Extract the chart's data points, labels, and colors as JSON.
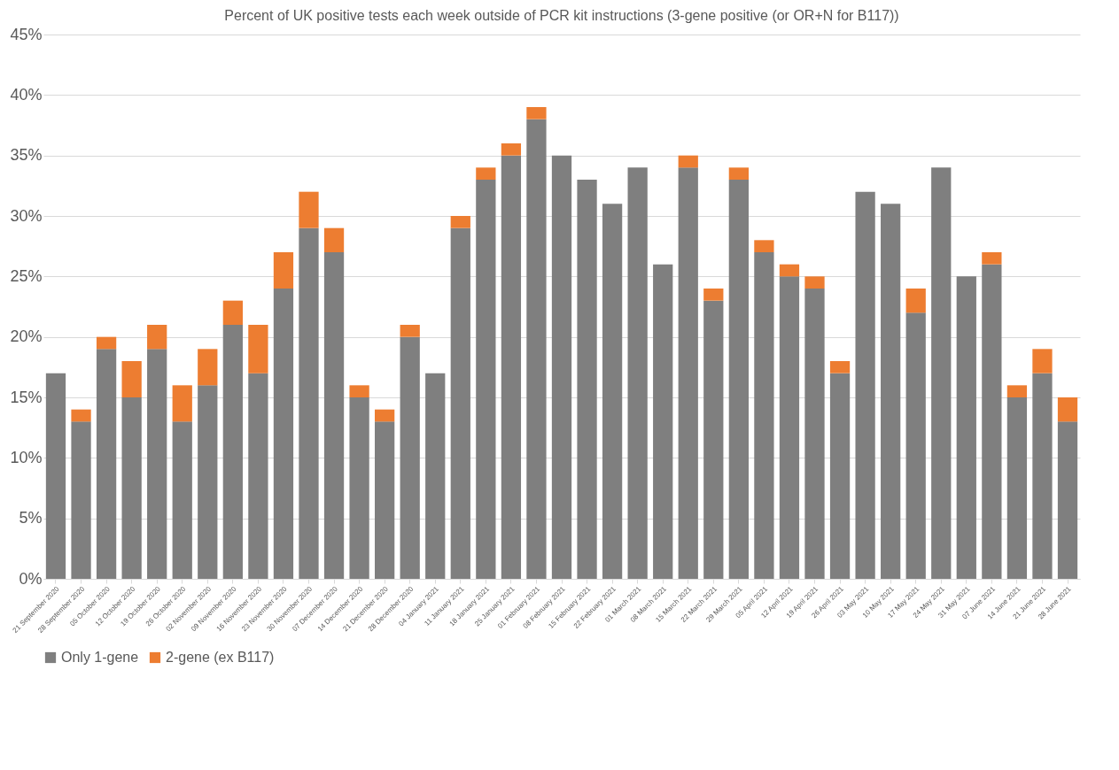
{
  "chart_data": {
    "type": "bar",
    "title": "Percent of UK positive tests each week outside of PCR kit instructions (3-gene positive (or OR+N for B117))",
    "stacked": true,
    "legend": "bottom",
    "grid": "y",
    "categories": [
      "21 September 2020",
      "28 September 2020",
      "05 October 2020",
      "12 October 2020",
      "19 October 2020",
      "26 October 2020",
      "02 November 2020",
      "09 November 2020",
      "16 November 2020",
      "23 November 2020",
      "30 November 2020",
      "07 December 2020",
      "14 December 2020",
      "21 December 2020",
      "28 December 2020",
      "04 January 2021",
      "11 January 2021",
      "18 January 2021",
      "25 January 2021",
      "01 February 2021",
      "08 February 2021",
      "15 February 2021",
      "22 February 2021",
      "01 March 2021",
      "08 March 2021",
      "15 March 2021",
      "22 March 2021",
      "29 March 2021",
      "05 April 2021",
      "12 April 2021",
      "19 April 2021",
      "26 April 2021",
      "03 May 2021",
      "10 May 2021",
      "17 May 2021",
      "24 May 2021",
      "31 May 2021",
      "07 June 2021",
      "14 June 2021",
      "21 June 2021",
      "28 June 2021"
    ],
    "series": [
      {
        "name": "Only 1-gene",
        "color": "#7f7f7f",
        "values": [
          17,
          13,
          19,
          15,
          19,
          13,
          16,
          21,
          17,
          24,
          29,
          27,
          15,
          13,
          20,
          17,
          29,
          33,
          35,
          38,
          35,
          33,
          31,
          34,
          26,
          34,
          23,
          33,
          27,
          25,
          24,
          17,
          32,
          31,
          22,
          34,
          25,
          26,
          15,
          17,
          13
        ]
      },
      {
        "name": "2-gene (ex B117)",
        "color": "#ed7d31",
        "values": [
          null,
          1,
          1,
          3,
          2,
          3,
          3,
          2,
          4,
          3,
          3,
          2,
          1,
          1,
          1,
          null,
          1,
          1,
          1,
          1,
          null,
          null,
          null,
          null,
          null,
          1,
          1,
          1,
          1,
          1,
          1,
          1,
          null,
          null,
          2,
          null,
          null,
          1,
          1,
          2,
          2
        ]
      }
    ],
    "ylim": [
      0,
      45
    ],
    "yticks": [
      {
        "value": 0,
        "label": "0%"
      },
      {
        "value": 5,
        "label": "5%"
      },
      {
        "value": 10,
        "label": "10%"
      },
      {
        "value": 15,
        "label": "15%"
      },
      {
        "value": 20,
        "label": "20%"
      },
      {
        "value": 25,
        "label": "25%"
      },
      {
        "value": 30,
        "label": "30%"
      },
      {
        "value": 35,
        "label": "35%"
      },
      {
        "value": 40,
        "label": "40%"
      },
      {
        "value": 45,
        "label": "45%"
      }
    ]
  }
}
